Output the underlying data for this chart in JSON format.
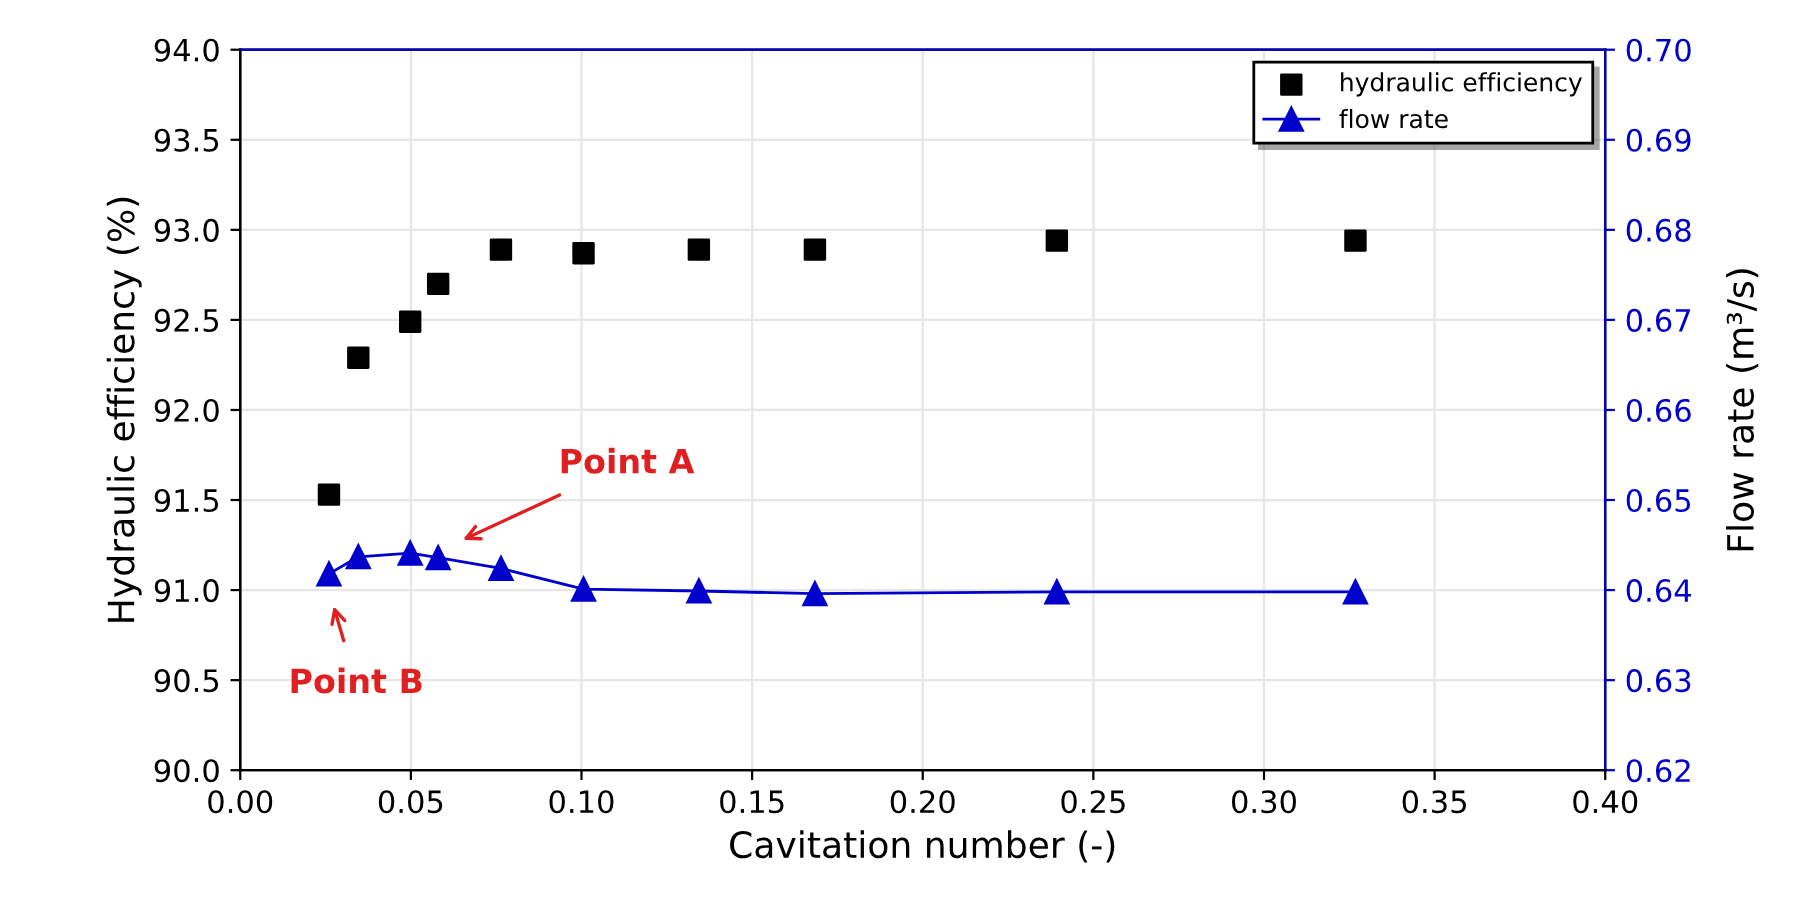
{
  "chart_data": {
    "type": "scatter",
    "xlabel": "Cavitation number (-)",
    "ylabel": "Hydraulic efficiency (%)",
    "y2label": "Flow rate (m³/s)",
    "x": [
      0.026,
      0.0346,
      0.0498,
      0.058,
      0.0764,
      0.1006,
      0.1344,
      0.1684,
      0.2393,
      0.3268
    ],
    "series": [
      {
        "name": "hydraulic efficiency",
        "color": "#000000",
        "marker": "square",
        "values": [
          91.53,
          92.29,
          92.49,
          92.7,
          92.89,
          92.87,
          92.89,
          92.89,
          92.94,
          92.94
        ]
      },
      {
        "name": "flow rate",
        "type": "line",
        "axis": "y2",
        "color": "#0000cc",
        "marker": "triangle",
        "line_style": "solid",
        "values": [
          0.6418,
          0.6437,
          0.6441,
          0.6436,
          0.6424,
          0.6401,
          0.6399,
          0.6396,
          0.6398,
          0.6398
        ]
      }
    ],
    "xlim": [
      0.0,
      0.4
    ],
    "xticks": [
      {
        "value": 0.0,
        "label": "0.00"
      },
      {
        "value": 0.05,
        "label": "0.05"
      },
      {
        "value": 0.1,
        "label": "0.10"
      },
      {
        "value": 0.15,
        "label": "0.15"
      },
      {
        "value": 0.2,
        "label": "0.20"
      },
      {
        "value": 0.25,
        "label": "0.25"
      },
      {
        "value": 0.3,
        "label": "0.30"
      },
      {
        "value": 0.35,
        "label": "0.35"
      },
      {
        "value": 0.4,
        "label": "0.40"
      }
    ],
    "ylim": [
      90.0,
      94.0
    ],
    "yticks": [
      {
        "value": 90.0,
        "label": "90.0"
      },
      {
        "value": 90.5,
        "label": "90.5"
      },
      {
        "value": 91.0,
        "label": "91.0"
      },
      {
        "value": 91.5,
        "label": "91.5"
      },
      {
        "value": 92.0,
        "label": "92.0"
      },
      {
        "value": 92.5,
        "label": "92.5"
      },
      {
        "value": 93.0,
        "label": "93.0"
      },
      {
        "value": 93.5,
        "label": "93.5"
      },
      {
        "value": 94.0,
        "label": "94.0"
      }
    ],
    "y2lim": [
      0.62,
      0.7
    ],
    "y2ticks": [
      {
        "value": 0.62,
        "label": "0.62"
      },
      {
        "value": 0.63,
        "label": "0.63"
      },
      {
        "value": 0.64,
        "label": "0.64"
      },
      {
        "value": 0.65,
        "label": "0.65"
      },
      {
        "value": 0.66,
        "label": "0.66"
      },
      {
        "value": 0.67,
        "label": "0.67"
      },
      {
        "value": 0.68,
        "label": "0.68"
      },
      {
        "value": 0.69,
        "label": "0.69"
      },
      {
        "value": 0.7,
        "label": "0.70"
      }
    ],
    "annotations": [
      "Point A",
      "Point B"
    ],
    "grid": true,
    "legend": "top right"
  }
}
